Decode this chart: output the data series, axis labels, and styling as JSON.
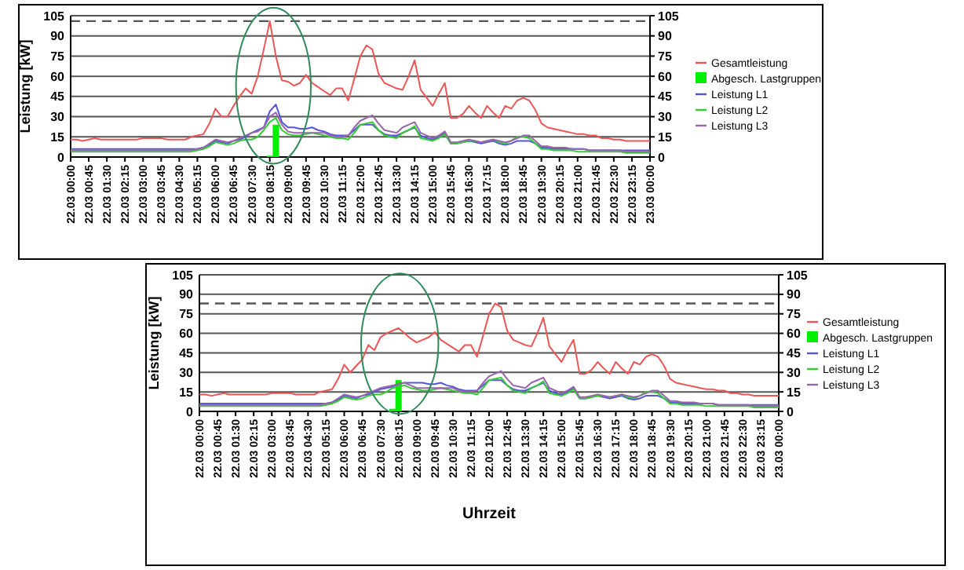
{
  "chart_data": [
    {
      "type": "line",
      "ylabel": "Leistung [kW]",
      "categories": [
        "22.03 00:00",
        null,
        null,
        "22.03 00:45",
        null,
        null,
        "22.03 01:30",
        null,
        null,
        "22.03 02:15",
        null,
        null,
        "22.03 03:00",
        null,
        null,
        "22.03 03:45",
        null,
        null,
        "22.03 04:30",
        null,
        null,
        "22.03 05:15",
        null,
        null,
        "22.03 06:00",
        null,
        null,
        "22.03 06:45",
        null,
        null,
        "22.03 07:30",
        null,
        null,
        "22.03 08:15",
        null,
        null,
        "22.03 09:00",
        null,
        null,
        "22.03 09:45",
        null,
        null,
        "22.03 10:30",
        null,
        null,
        "22.03 11:15",
        null,
        null,
        "22.03 12:00",
        null,
        null,
        "22.03 12:45",
        null,
        null,
        "22.03 13:30",
        null,
        null,
        "22.03 14:15",
        null,
        null,
        "22.03 15:00",
        null,
        null,
        "22.03 15:45",
        null,
        null,
        "22.03 16:30",
        null,
        null,
        "22.03 17:15",
        null,
        null,
        "22.03 18:00",
        null,
        null,
        "22.03 18:45",
        null,
        null,
        "22.03 19:30",
        null,
        null,
        "22.03 20:15",
        null,
        null,
        "22.03 21:00",
        null,
        null,
        "22.03 21:45",
        null,
        null,
        "22.03 22:30",
        null,
        null,
        "22.03 23:15",
        null,
        null,
        "23.03 00:00"
      ],
      "ylim": [
        0,
        105
      ],
      "yticks": [
        0,
        15,
        30,
        45,
        60,
        75,
        90,
        105
      ],
      "y2lim": [
        0,
        105
      ],
      "y2ticks": [
        0,
        15,
        30,
        45,
        60,
        75,
        90,
        105
      ],
      "grid": "y",
      "legend": "right",
      "marker": "none",
      "ref_lines": [
        {
          "axis": "y",
          "value": 101,
          "color": "#555555",
          "line_style": "dashed"
        }
      ],
      "series": [
        {
          "name": "Gesamtleistung",
          "color": "#ee5555",
          "values": [
            13,
            13,
            12,
            13,
            14,
            13,
            13,
            13,
            13,
            13,
            13,
            13,
            14,
            14,
            14,
            14,
            13,
            13,
            13,
            13,
            15,
            16,
            17,
            25,
            36,
            30,
            30,
            38,
            45,
            51,
            47,
            60,
            80,
            101,
            75,
            57,
            56,
            53,
            55,
            61,
            55,
            52,
            49,
            46,
            51,
            51,
            42,
            58,
            75,
            83,
            80,
            62,
            55,
            53,
            51,
            50,
            60,
            72,
            50,
            44,
            38,
            47,
            55,
            29,
            29,
            32,
            38,
            33,
            29,
            38,
            33,
            29,
            38,
            36,
            42,
            44,
            42,
            35,
            25,
            22,
            21,
            20,
            19,
            18,
            17,
            17,
            16,
            16,
            14,
            14,
            13,
            13,
            12,
            12,
            12,
            12,
            12
          ]
        },
        {
          "name": "Abgesch. Lastgruppen",
          "type": "bar",
          "color": "#00ee00",
          "values": [
            null,
            null,
            null,
            null,
            null,
            null,
            null,
            null,
            null,
            null,
            null,
            null,
            null,
            null,
            null,
            null,
            null,
            null,
            null,
            null,
            null,
            null,
            null,
            null,
            null,
            null,
            null,
            null,
            null,
            null,
            null,
            null,
            null,
            1,
            24,
            null,
            null,
            null,
            null,
            null,
            null,
            null,
            null,
            null,
            null,
            null,
            null,
            null,
            null,
            null,
            null,
            null,
            null,
            null,
            null,
            null,
            null,
            null,
            null,
            null,
            null,
            null,
            null,
            null,
            null,
            null,
            null,
            null,
            null,
            null,
            null,
            null,
            null,
            null,
            null,
            null,
            null,
            null,
            null,
            null,
            null,
            null,
            null,
            null,
            null,
            null,
            null,
            null,
            null,
            null,
            null,
            null,
            null,
            null,
            null,
            null,
            null
          ]
        },
        {
          "name": "Leistung L1",
          "color": "#5555dd",
          "values": [
            6,
            6,
            6,
            6,
            6,
            6,
            6,
            6,
            6,
            6,
            6,
            6,
            6,
            6,
            6,
            6,
            6,
            6,
            6,
            6,
            6,
            6,
            7,
            9,
            12,
            11,
            10,
            12,
            13,
            15,
            18,
            20,
            22,
            34,
            39,
            26,
            22,
            22,
            21,
            21,
            22,
            20,
            19,
            17,
            16,
            16,
            16,
            20,
            24,
            24,
            24,
            20,
            17,
            16,
            16,
            18,
            20,
            22,
            16,
            14,
            13,
            15,
            18,
            10,
            10,
            11,
            12,
            11,
            10,
            11,
            12,
            10,
            9,
            10,
            12,
            12,
            12,
            10,
            7,
            7,
            6,
            6,
            6,
            6,
            6,
            6,
            5,
            5,
            5,
            5,
            5,
            5,
            5,
            5,
            5,
            5,
            5
          ]
        },
        {
          "name": "Leistung L2",
          "color": "#33cc33",
          "values": [
            4,
            4,
            4,
            4,
            4,
            4,
            4,
            4,
            4,
            4,
            4,
            4,
            4,
            4,
            4,
            4,
            4,
            4,
            4,
            4,
            4,
            5,
            6,
            8,
            11,
            10,
            9,
            10,
            12,
            13,
            13,
            15,
            20,
            26,
            29,
            20,
            17,
            16,
            16,
            17,
            18,
            17,
            16,
            15,
            14,
            14,
            13,
            18,
            24,
            25,
            26,
            20,
            16,
            15,
            14,
            18,
            20,
            23,
            14,
            13,
            12,
            14,
            17,
            10,
            10,
            11,
            12,
            12,
            11,
            12,
            13,
            11,
            10,
            12,
            15,
            15,
            14,
            10,
            6,
            6,
            5,
            5,
            5,
            5,
            4,
            4,
            4,
            4,
            4,
            4,
            4,
            4,
            3,
            3,
            3,
            3,
            3
          ]
        },
        {
          "name": "Leistung L3",
          "color": "#9966aa",
          "values": [
            5,
            5,
            5,
            5,
            5,
            5,
            5,
            5,
            5,
            5,
            5,
            5,
            5,
            5,
            5,
            5,
            5,
            5,
            5,
            5,
            5,
            6,
            7,
            10,
            13,
            12,
            11,
            12,
            14,
            16,
            18,
            19,
            22,
            30,
            33,
            24,
            19,
            18,
            18,
            18,
            18,
            18,
            18,
            16,
            15,
            15,
            16,
            22,
            27,
            29,
            31,
            25,
            20,
            19,
            18,
            22,
            24,
            26,
            18,
            16,
            14,
            16,
            19,
            11,
            11,
            12,
            13,
            12,
            11,
            12,
            13,
            12,
            11,
            12,
            14,
            16,
            16,
            12,
            8,
            8,
            7,
            7,
            7,
            6,
            6,
            6,
            5,
            5,
            5,
            5,
            5,
            5,
            4,
            4,
            4,
            4,
            4
          ]
        }
      ]
    },
    {
      "type": "line",
      "xlabel": "Uhrzeit",
      "ylabel": "Leistung [kW]",
      "categories": [
        "22.03 00:00",
        null,
        null,
        "22.03 00:45",
        null,
        null,
        "22.03 01:30",
        null,
        null,
        "22.03 02:15",
        null,
        null,
        "22.03 03:00",
        null,
        null,
        "22.03 03:45",
        null,
        null,
        "22.03 04:30",
        null,
        null,
        "22.03 05:15",
        null,
        null,
        "22.03 06:00",
        null,
        null,
        "22.03 06:45",
        null,
        null,
        "22.03 07:30",
        null,
        null,
        "22.03 08:15",
        null,
        null,
        "22.03 09:00",
        null,
        null,
        "22.03 09:45",
        null,
        null,
        "22.03 10:30",
        null,
        null,
        "22.03 11:15",
        null,
        null,
        "22.03 12:00",
        null,
        null,
        "22.03 12:45",
        null,
        null,
        "22.03 13:30",
        null,
        null,
        "22.03 14:15",
        null,
        null,
        "22.03 15:00",
        null,
        null,
        "22.03 15:45",
        null,
        null,
        "22.03 16:30",
        null,
        null,
        "22.03 17:15",
        null,
        null,
        "22.03 18:00",
        null,
        null,
        "22.03 18:45",
        null,
        null,
        "22.03 19:30",
        null,
        null,
        "22.03 20:15",
        null,
        null,
        "22.03 21:00",
        null,
        null,
        "22.03 21:45",
        null,
        null,
        "22.03 22:30",
        null,
        null,
        "22.03 23:15",
        null,
        null,
        "23.03 00:00"
      ],
      "ylim": [
        0,
        105
      ],
      "yticks": [
        0,
        15,
        30,
        45,
        60,
        75,
        90,
        105
      ],
      "y2lim": [
        0,
        105
      ],
      "y2ticks": [
        0,
        15,
        30,
        45,
        60,
        75,
        90,
        105
      ],
      "grid": "y",
      "legend": "right",
      "marker": "none",
      "ref_lines": [
        {
          "axis": "y",
          "value": 83,
          "color": "#555555",
          "line_style": "dashed"
        }
      ],
      "series": [
        {
          "name": "Gesamtleistung",
          "color": "#ee5555",
          "values": [
            13,
            13,
            12,
            13,
            14,
            13,
            13,
            13,
            13,
            13,
            13,
            13,
            14,
            14,
            14,
            14,
            13,
            13,
            13,
            13,
            15,
            16,
            17,
            25,
            36,
            30,
            35,
            40,
            51,
            47,
            57,
            60,
            62,
            64,
            60,
            56,
            53,
            55,
            57,
            61,
            55,
            52,
            49,
            46,
            51,
            51,
            42,
            58,
            75,
            83,
            80,
            62,
            55,
            53,
            51,
            50,
            60,
            72,
            50,
            44,
            38,
            47,
            55,
            29,
            29,
            32,
            38,
            33,
            29,
            38,
            33,
            29,
            38,
            36,
            42,
            44,
            42,
            35,
            25,
            22,
            21,
            20,
            19,
            18,
            17,
            17,
            16,
            16,
            14,
            14,
            13,
            13,
            12,
            12,
            12,
            12,
            12
          ]
        },
        {
          "name": "Abgesch. Lastgruppen",
          "type": "bar",
          "color": "#00ee00",
          "values": [
            null,
            null,
            null,
            null,
            null,
            null,
            null,
            null,
            null,
            null,
            null,
            null,
            null,
            null,
            null,
            null,
            null,
            null,
            null,
            null,
            null,
            null,
            null,
            null,
            null,
            null,
            null,
            null,
            null,
            null,
            null,
            null,
            2,
            24,
            null,
            null,
            null,
            null,
            null,
            null,
            null,
            null,
            null,
            null,
            null,
            null,
            null,
            null,
            null,
            null,
            null,
            null,
            null,
            null,
            null,
            null,
            null,
            null,
            null,
            null,
            null,
            null,
            null,
            null,
            null,
            null,
            null,
            null,
            null,
            null,
            null,
            null,
            null,
            null,
            null,
            null,
            null,
            null,
            null,
            null,
            null,
            null,
            null,
            null,
            null,
            null,
            null,
            null,
            null,
            null,
            null,
            null,
            null,
            null,
            null,
            null,
            null
          ]
        },
        {
          "name": "Leistung L1",
          "color": "#5555dd",
          "values": [
            6,
            6,
            6,
            6,
            6,
            6,
            6,
            6,
            6,
            6,
            6,
            6,
            6,
            6,
            6,
            6,
            6,
            6,
            6,
            6,
            6,
            6,
            7,
            9,
            12,
            11,
            10,
            12,
            13,
            15,
            17,
            18,
            19,
            21,
            22,
            22,
            22,
            22,
            21,
            21,
            22,
            20,
            19,
            17,
            16,
            16,
            16,
            20,
            24,
            24,
            24,
            20,
            17,
            16,
            16,
            18,
            20,
            22,
            16,
            14,
            13,
            15,
            18,
            10,
            10,
            11,
            12,
            11,
            10,
            11,
            12,
            10,
            9,
            10,
            12,
            12,
            12,
            10,
            7,
            7,
            6,
            6,
            6,
            6,
            6,
            6,
            5,
            5,
            5,
            5,
            5,
            5,
            5,
            5,
            5,
            5,
            5
          ]
        },
        {
          "name": "Leistung L2",
          "color": "#33cc33",
          "values": [
            4,
            4,
            4,
            4,
            4,
            4,
            4,
            4,
            4,
            4,
            4,
            4,
            4,
            4,
            4,
            4,
            4,
            4,
            4,
            4,
            4,
            5,
            6,
            8,
            11,
            10,
            9,
            10,
            12,
            13,
            13,
            15,
            18,
            19,
            20,
            18,
            17,
            16,
            16,
            17,
            18,
            17,
            16,
            15,
            14,
            14,
            13,
            18,
            24,
            25,
            26,
            20,
            16,
            15,
            14,
            18,
            20,
            23,
            14,
            13,
            12,
            14,
            17,
            10,
            10,
            11,
            12,
            12,
            11,
            12,
            13,
            11,
            10,
            12,
            15,
            15,
            14,
            10,
            6,
            6,
            5,
            5,
            5,
            5,
            4,
            4,
            4,
            4,
            4,
            4,
            4,
            4,
            3,
            3,
            3,
            3,
            3
          ]
        },
        {
          "name": "Leistung L3",
          "color": "#9966aa",
          "values": [
            5,
            5,
            5,
            5,
            5,
            5,
            5,
            5,
            5,
            5,
            5,
            5,
            5,
            5,
            5,
            5,
            5,
            5,
            5,
            5,
            5,
            6,
            7,
            10,
            13,
            12,
            11,
            12,
            14,
            16,
            18,
            19,
            20,
            21,
            22,
            20,
            18,
            18,
            18,
            18,
            18,
            18,
            18,
            16,
            15,
            15,
            16,
            22,
            27,
            29,
            31,
            25,
            20,
            19,
            18,
            22,
            24,
            26,
            18,
            16,
            14,
            16,
            19,
            11,
            11,
            12,
            13,
            12,
            11,
            12,
            13,
            12,
            11,
            12,
            14,
            16,
            16,
            12,
            8,
            8,
            7,
            7,
            7,
            6,
            6,
            6,
            5,
            5,
            5,
            5,
            5,
            5,
            4,
            4,
            4,
            4,
            4
          ]
        }
      ]
    }
  ]
}
